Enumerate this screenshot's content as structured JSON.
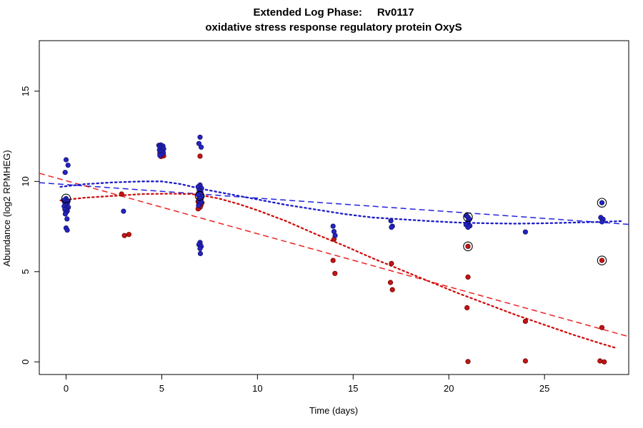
{
  "title": {
    "line1": "Extended Log Phase:     Rv0117",
    "line2": "oxidative stress response regulatory protein OxyS"
  },
  "axes": {
    "xlabel": "Time  (days)",
    "ylabel": "Abundance  (log2 RPMHEG)"
  },
  "colors": {
    "blue_point_fill": "#2424c4",
    "blue_point_stroke": "#12126a",
    "red_point_fill": "#c41414",
    "red_point_stroke": "#6e0000",
    "blue_line": "#2222dd",
    "red_line": "#ee2222",
    "blue_dotted": "#1b1bc8",
    "red_dotted": "#d01010",
    "axis": "#000000",
    "circle_outline": "#000000"
  },
  "chart_data": {
    "type": "scatter",
    "title": "Extended Log Phase: Rv0117 — oxidative stress response regulatory protein OxyS",
    "xlabel": "Time (days)",
    "ylabel": "Abundance (log2 RPMHEG)",
    "xlim": [
      -1.4,
      29.4
    ],
    "ylim": [
      -0.7,
      17.8
    ],
    "x_ticks": [
      0,
      5,
      10,
      15,
      20,
      25
    ],
    "y_ticks": [
      0,
      5,
      10,
      15
    ],
    "grid": false,
    "legend": "none",
    "series": [
      {
        "name": "red",
        "points": [
          [
            0,
            9.0
          ],
          [
            2.9,
            9.3
          ],
          [
            3.05,
            7.0
          ],
          [
            3.28,
            7.06
          ],
          [
            4.95,
            11.72
          ],
          [
            5.05,
            11.64
          ],
          [
            4.9,
            11.56
          ],
          [
            5.0,
            11.5
          ],
          [
            5.1,
            11.42
          ],
          [
            4.96,
            11.38
          ],
          [
            7.0,
            11.4
          ],
          [
            6.9,
            9.3
          ],
          [
            7.1,
            9.2
          ],
          [
            6.95,
            9.1
          ],
          [
            7.05,
            9.02
          ],
          [
            7.0,
            8.95
          ],
          [
            6.9,
            8.88
          ],
          [
            7.1,
            8.82
          ],
          [
            6.96,
            8.74
          ],
          [
            7.04,
            8.66
          ],
          [
            7.0,
            8.56
          ],
          [
            6.9,
            8.48
          ],
          [
            7.0,
            6.55
          ],
          [
            14.0,
            6.8
          ],
          [
            13.95,
            5.62
          ],
          [
            14.05,
            4.9
          ],
          [
            17.0,
            5.45
          ],
          [
            16.95,
            4.4
          ],
          [
            17.05,
            4.0
          ],
          [
            21.0,
            6.4
          ],
          [
            21.0,
            4.7
          ],
          [
            20.95,
            3.0
          ],
          [
            21.0,
            0.02
          ],
          [
            24.0,
            2.25
          ],
          [
            24.0,
            0.05
          ],
          [
            28.0,
            5.62
          ],
          [
            28.0,
            1.9
          ],
          [
            27.9,
            0.05
          ],
          [
            28.12,
            0.0
          ]
        ]
      },
      {
        "name": "blue",
        "points": [
          [
            0,
            11.2
          ],
          [
            0.1,
            10.9
          ],
          [
            -0.05,
            10.5
          ],
          [
            0,
            9.05
          ],
          [
            -0.12,
            8.95
          ],
          [
            0.1,
            8.9
          ],
          [
            -0.06,
            8.82
          ],
          [
            0.06,
            8.76
          ],
          [
            0,
            8.7
          ],
          [
            -0.1,
            8.62
          ],
          [
            0.12,
            8.56
          ],
          [
            0,
            8.5
          ],
          [
            -0.06,
            8.44
          ],
          [
            0.06,
            8.36
          ],
          [
            0,
            8.28
          ],
          [
            -0.04,
            8.2
          ],
          [
            0.05,
            7.92
          ],
          [
            0,
            7.42
          ],
          [
            0.06,
            7.3
          ],
          [
            3.0,
            8.35
          ],
          [
            4.85,
            12.0
          ],
          [
            4.95,
            12.02
          ],
          [
            5.06,
            11.96
          ],
          [
            4.9,
            11.9
          ],
          [
            5.0,
            11.86
          ],
          [
            5.1,
            11.8
          ],
          [
            4.88,
            11.74
          ],
          [
            5.02,
            11.7
          ],
          [
            4.94,
            11.62
          ],
          [
            5.08,
            11.58
          ],
          [
            5.0,
            11.5
          ],
          [
            4.9,
            11.44
          ],
          [
            7.0,
            12.45
          ],
          [
            6.94,
            12.1
          ],
          [
            7.06,
            11.9
          ],
          [
            7.0,
            9.8
          ],
          [
            6.9,
            9.7
          ],
          [
            7.08,
            9.62
          ],
          [
            6.95,
            9.52
          ],
          [
            7.04,
            9.44
          ],
          [
            7.0,
            9.35
          ],
          [
            6.9,
            9.26
          ],
          [
            7.1,
            9.16
          ],
          [
            7.0,
            9.06
          ],
          [
            6.94,
            8.96
          ],
          [
            7.06,
            8.86
          ],
          [
            7.0,
            8.76
          ],
          [
            6.92,
            8.66
          ],
          [
            7.0,
            6.62
          ],
          [
            6.94,
            6.5
          ],
          [
            7.06,
            6.4
          ],
          [
            7.0,
            6.28
          ],
          [
            7.02,
            6.0
          ],
          [
            13.95,
            7.52
          ],
          [
            14.0,
            7.22
          ],
          [
            14.06,
            7.0
          ],
          [
            16.97,
            7.82
          ],
          [
            17.05,
            7.52
          ],
          [
            17.0,
            7.46
          ],
          [
            20.92,
            8.1
          ],
          [
            21.0,
            8.02
          ],
          [
            21.08,
            7.9
          ],
          [
            21.0,
            7.78
          ],
          [
            20.9,
            7.6
          ],
          [
            21.1,
            7.54
          ],
          [
            21.0,
            7.46
          ],
          [
            24.0,
            7.2
          ],
          [
            28.0,
            8.82
          ],
          [
            27.94,
            8.0
          ],
          [
            28.06,
            7.9
          ],
          [
            28.0,
            7.76
          ]
        ]
      }
    ],
    "circled_points": [
      [
        0,
        9.05
      ],
      [
        6.98,
        9.2
      ],
      [
        21,
        8.02
      ],
      [
        21,
        6.4
      ],
      [
        28,
        8.82
      ],
      [
        28,
        5.62
      ]
    ],
    "fit_lines": [
      {
        "name": "blue-linear-fit",
        "series": "blue",
        "style": "dashed",
        "x1": -1.4,
        "y1": 9.93,
        "x2": 29.4,
        "y2": 7.62
      },
      {
        "name": "red-linear-fit",
        "series": "red",
        "style": "dashed",
        "x1": -1.4,
        "y1": 10.45,
        "x2": 29.4,
        "y2": 1.4
      }
    ],
    "smooth_curves": [
      {
        "name": "blue-smooth-fit",
        "series": "blue",
        "style": "dotted",
        "points": [
          [
            -0.3,
            9.7
          ],
          [
            1,
            9.85
          ],
          [
            2.5,
            9.95
          ],
          [
            4,
            10.0
          ],
          [
            5,
            10.0
          ],
          [
            6,
            9.85
          ],
          [
            7,
            9.6
          ],
          [
            8.5,
            9.3
          ],
          [
            10,
            9.0
          ],
          [
            11.5,
            8.7
          ],
          [
            13,
            8.45
          ],
          [
            14.5,
            8.2
          ],
          [
            16,
            8.0
          ],
          [
            17.5,
            7.9
          ],
          [
            19,
            7.8
          ],
          [
            20.5,
            7.72
          ],
          [
            22,
            7.68
          ],
          [
            23.5,
            7.66
          ],
          [
            25,
            7.68
          ],
          [
            26.5,
            7.72
          ],
          [
            28,
            7.76
          ],
          [
            29,
            7.8
          ]
        ]
      },
      {
        "name": "red-smooth-fit",
        "series": "red",
        "style": "dotted",
        "points": [
          [
            -0.3,
            8.95
          ],
          [
            1,
            9.1
          ],
          [
            2.5,
            9.2
          ],
          [
            4,
            9.3
          ],
          [
            5.5,
            9.32
          ],
          [
            6.5,
            9.3
          ],
          [
            7,
            9.25
          ],
          [
            8,
            9.05
          ],
          [
            9,
            8.75
          ],
          [
            10,
            8.4
          ],
          [
            11.5,
            7.8
          ],
          [
            13,
            7.1
          ],
          [
            14.5,
            6.45
          ],
          [
            16,
            5.75
          ],
          [
            17.5,
            5.1
          ],
          [
            19,
            4.45
          ],
          [
            20.5,
            3.8
          ],
          [
            22,
            3.2
          ],
          [
            23.5,
            2.6
          ],
          [
            25,
            2.05
          ],
          [
            26.5,
            1.5
          ],
          [
            28,
            1.0
          ],
          [
            28.8,
            0.75
          ]
        ]
      }
    ]
  }
}
